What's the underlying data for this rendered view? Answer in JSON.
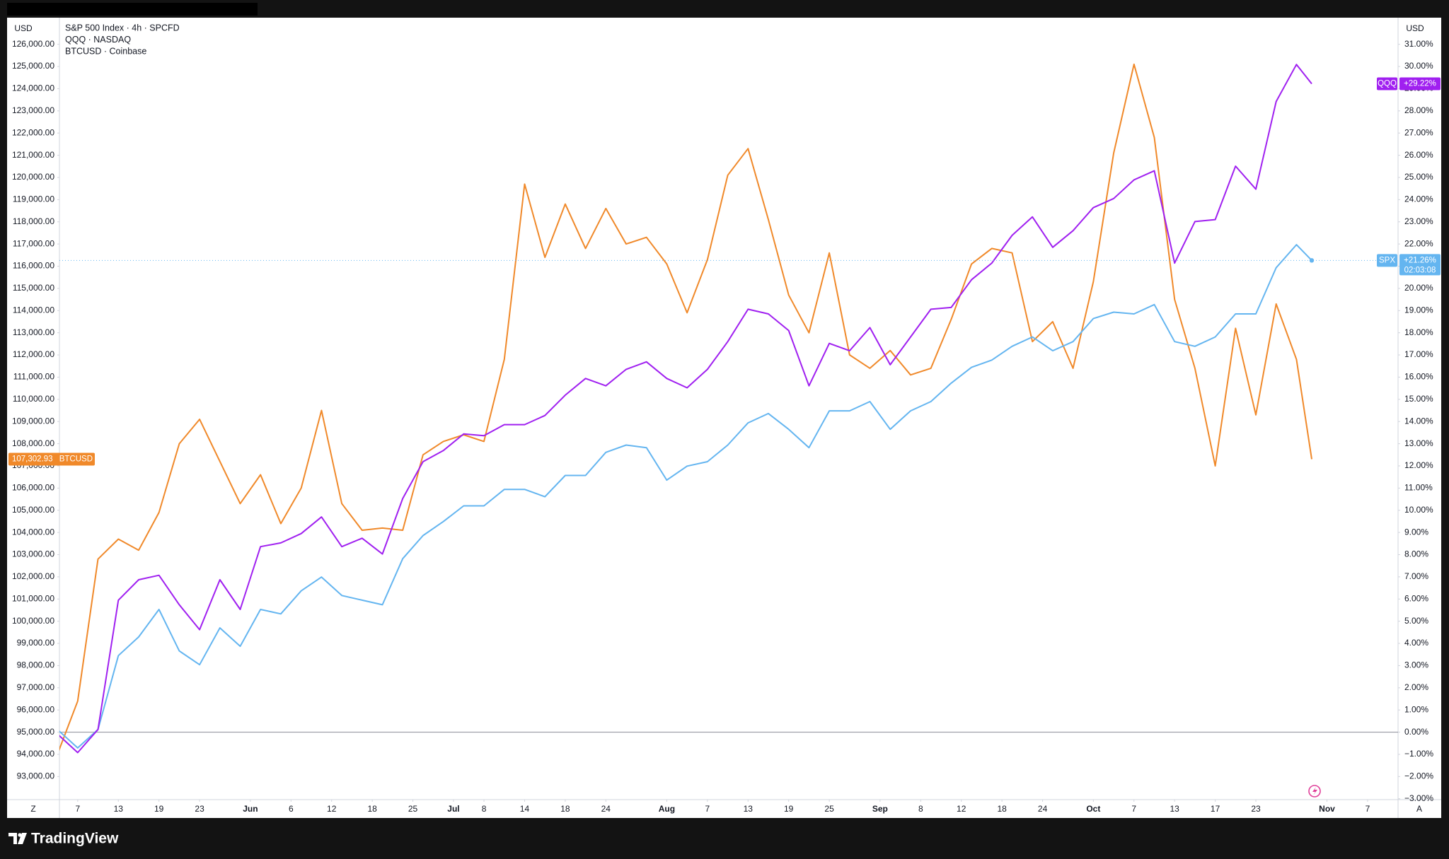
{
  "brand": "TradingView",
  "controls": {
    "left": "Z",
    "right": "A"
  },
  "chart_data": {
    "type": "line",
    "ylabel": "USD",
    "y2label": "USD",
    "ylim": [
      91960,
      127200
    ],
    "y2lim": [
      -3.04,
      32.2
    ],
    "xlim": [
      0.2,
      132
    ],
    "grid": false,
    "baseline": 0,
    "yticks": [
      {
        "value": 93000,
        "label": "93,000.00"
      },
      {
        "value": 94000,
        "label": "94,000.00"
      },
      {
        "value": 95000,
        "label": "95,000.00"
      },
      {
        "value": 96000,
        "label": "96,000.00"
      },
      {
        "value": 97000,
        "label": "97,000.00"
      },
      {
        "value": 98000,
        "label": "98,000.00"
      },
      {
        "value": 99000,
        "label": "99,000.00"
      },
      {
        "value": 100000,
        "label": "100,000.00"
      },
      {
        "value": 101000,
        "label": "101,000.00"
      },
      {
        "value": 102000,
        "label": "102,000.00"
      },
      {
        "value": 103000,
        "label": "103,000.00"
      },
      {
        "value": 104000,
        "label": "104,000.00"
      },
      {
        "value": 105000,
        "label": "105,000.00"
      },
      {
        "value": 106000,
        "label": "106,000.00"
      },
      {
        "value": 107000,
        "label": "107,000.00"
      },
      {
        "value": 108000,
        "label": "108,000.00"
      },
      {
        "value": 109000,
        "label": "109,000.00"
      },
      {
        "value": 110000,
        "label": "110,000.00"
      },
      {
        "value": 111000,
        "label": "111,000.00"
      },
      {
        "value": 112000,
        "label": "112,000.00"
      },
      {
        "value": 113000,
        "label": "113,000.00"
      },
      {
        "value": 114000,
        "label": "114,000.00"
      },
      {
        "value": 115000,
        "label": "115,000.00"
      },
      {
        "value": 116000,
        "label": "116,000.00"
      },
      {
        "value": 117000,
        "label": "117,000.00"
      },
      {
        "value": 118000,
        "label": "118,000.00"
      },
      {
        "value": 119000,
        "label": "119,000.00"
      },
      {
        "value": 120000,
        "label": "120,000.00"
      },
      {
        "value": 121000,
        "label": "121,000.00"
      },
      {
        "value": 122000,
        "label": "122,000.00"
      },
      {
        "value": 123000,
        "label": "123,000.00"
      },
      {
        "value": 124000,
        "label": "124,000.00"
      },
      {
        "value": 125000,
        "label": "125,000.00"
      },
      {
        "value": 126000,
        "label": "126,000.00"
      }
    ],
    "y2ticks": [
      {
        "value": -3,
        "label": "−3.00%"
      },
      {
        "value": -2,
        "label": "−2.00%"
      },
      {
        "value": -1,
        "label": "−1.00%"
      },
      {
        "value": 0,
        "label": "0.00%"
      },
      {
        "value": 1,
        "label": "1.00%"
      },
      {
        "value": 2,
        "label": "2.00%"
      },
      {
        "value": 3,
        "label": "3.00%"
      },
      {
        "value": 4,
        "label": "4.00%"
      },
      {
        "value": 5,
        "label": "5.00%"
      },
      {
        "value": 6,
        "label": "6.00%"
      },
      {
        "value": 7,
        "label": "7.00%"
      },
      {
        "value": 8,
        "label": "8.00%"
      },
      {
        "value": 9,
        "label": "9.00%"
      },
      {
        "value": 10,
        "label": "10.00%"
      },
      {
        "value": 11,
        "label": "11.00%"
      },
      {
        "value": 12,
        "label": "12.00%"
      },
      {
        "value": 13,
        "label": "13.00%"
      },
      {
        "value": 14,
        "label": "14.00%"
      },
      {
        "value": 15,
        "label": "15.00%"
      },
      {
        "value": 16,
        "label": "16.00%"
      },
      {
        "value": 17,
        "label": "17.00%"
      },
      {
        "value": 18,
        "label": "18.00%"
      },
      {
        "value": 19,
        "label": "19.00%"
      },
      {
        "value": 20,
        "label": "20.00%"
      },
      {
        "value": 21,
        "label": "21.00%"
      },
      {
        "value": 22,
        "label": "22.00%"
      },
      {
        "value": 23,
        "label": "23.00%"
      },
      {
        "value": 24,
        "label": "24.00%"
      },
      {
        "value": 25,
        "label": "25.00%"
      },
      {
        "value": 26,
        "label": "26.00%"
      },
      {
        "value": 27,
        "label": "27.00%"
      },
      {
        "value": 28,
        "label": "28.00%"
      },
      {
        "value": 29,
        "label": "29.00%"
      },
      {
        "value": 30,
        "label": "30.00%"
      },
      {
        "value": 31,
        "label": "31.00%"
      }
    ],
    "xticks": [
      {
        "value": 2,
        "label": "7"
      },
      {
        "value": 6,
        "label": "13"
      },
      {
        "value": 10,
        "label": "19"
      },
      {
        "value": 14,
        "label": "23"
      },
      {
        "value": 19,
        "label": "Jun"
      },
      {
        "value": 23,
        "label": "6"
      },
      {
        "value": 27,
        "label": "12"
      },
      {
        "value": 31,
        "label": "18"
      },
      {
        "value": 35,
        "label": "25"
      },
      {
        "value": 39,
        "label": "Jul"
      },
      {
        "value": 42,
        "label": "8"
      },
      {
        "value": 46,
        "label": "14"
      },
      {
        "value": 50,
        "label": "18"
      },
      {
        "value": 54,
        "label": "24"
      },
      {
        "value": 60,
        "label": "Aug"
      },
      {
        "value": 64,
        "label": "7"
      },
      {
        "value": 68,
        "label": "13"
      },
      {
        "value": 72,
        "label": "19"
      },
      {
        "value": 76,
        "label": "25"
      },
      {
        "value": 81,
        "label": "Sep"
      },
      {
        "value": 85,
        "label": "8"
      },
      {
        "value": 89,
        "label": "12"
      },
      {
        "value": 93,
        "label": "18"
      },
      {
        "value": 97,
        "label": "24"
      },
      {
        "value": 102,
        "label": "Oct"
      },
      {
        "value": 106,
        "label": "7"
      },
      {
        "value": 110,
        "label": "13"
      },
      {
        "value": 114,
        "label": "17"
      },
      {
        "value": 118,
        "label": "23"
      },
      {
        "value": 125,
        "label": "Nov"
      },
      {
        "value": 129,
        "label": "7"
      }
    ],
    "x": [
      0,
      2,
      4,
      6,
      8,
      10,
      12,
      14,
      16,
      18,
      20,
      22,
      24,
      26,
      28,
      30,
      32,
      34,
      36,
      38,
      40,
      42,
      44,
      46,
      48,
      50,
      52,
      54,
      56,
      58,
      60,
      62,
      64,
      66,
      68,
      70,
      72,
      74,
      76,
      78,
      80,
      82,
      84,
      86,
      88,
      90,
      92,
      94,
      96,
      98,
      100,
      102,
      104,
      106,
      108,
      110,
      112,
      114,
      116,
      118,
      120,
      122,
      123.5
    ],
    "series": [
      {
        "name": "S&P 500 Index · 4h · SPCFD",
        "symbol": "SPX",
        "color": "#64b5f0",
        "axis": "y2",
        "countdown": "02:03:08",
        "values": [
          0.12,
          -0.71,
          0.12,
          3.45,
          4.29,
          5.53,
          3.66,
          3.04,
          4.7,
          3.87,
          5.53,
          5.33,
          6.37,
          6.99,
          6.16,
          5.95,
          5.74,
          7.82,
          8.86,
          9.49,
          10.2,
          10.2,
          10.94,
          10.94,
          10.61,
          11.57,
          11.57,
          12.61,
          12.94,
          12.82,
          11.36,
          11.99,
          12.19,
          12.94,
          13.94,
          14.36,
          13.65,
          12.82,
          14.48,
          14.48,
          14.9,
          13.65,
          14.48,
          14.9,
          15.73,
          16.44,
          16.77,
          17.39,
          17.81,
          17.19,
          17.6,
          18.64,
          18.93,
          18.85,
          19.27,
          17.6,
          17.39,
          17.81,
          18.85,
          18.85,
          20.93,
          21.97,
          21.26
        ],
        "value_labels": [
          null,
          null,
          null,
          null,
          null,
          null,
          null,
          null,
          null,
          null,
          null,
          null,
          null,
          null,
          null,
          null,
          null,
          null,
          null,
          null,
          null,
          null,
          null,
          null,
          null,
          null,
          null,
          null,
          null,
          null,
          null,
          null,
          null,
          null,
          null,
          null,
          null,
          null,
          null,
          null,
          null,
          null,
          null,
          null,
          null,
          null,
          null,
          null,
          null,
          null,
          null,
          null,
          null,
          null,
          null,
          null,
          null,
          null,
          null,
          null,
          null,
          null,
          "+21.26%"
        ]
      },
      {
        "name": "QQQ · NASDAQ",
        "symbol": "QQQ",
        "color": "#a020f0",
        "axis": "y2",
        "values": [
          -0.08,
          -0.92,
          0.12,
          5.95,
          6.87,
          7.07,
          5.74,
          4.62,
          6.87,
          5.53,
          8.36,
          8.53,
          8.95,
          9.7,
          8.36,
          8.74,
          8.03,
          10.53,
          12.19,
          12.69,
          13.44,
          13.36,
          13.86,
          13.86,
          14.27,
          15.19,
          15.94,
          15.61,
          16.35,
          16.69,
          15.94,
          15.52,
          16.35,
          17.6,
          19.06,
          18.85,
          18.1,
          15.61,
          17.52,
          17.19,
          18.23,
          16.56,
          17.81,
          19.06,
          19.14,
          20.39,
          21.14,
          22.39,
          23.22,
          21.85,
          22.6,
          23.64,
          24.05,
          24.89,
          25.3,
          21.14,
          23.01,
          23.1,
          25.51,
          24.47,
          28.42,
          30.09,
          29.22
        ],
        "value_labels": [
          null,
          null,
          null,
          null,
          null,
          null,
          null,
          null,
          null,
          null,
          null,
          null,
          null,
          null,
          null,
          null,
          null,
          null,
          null,
          null,
          null,
          null,
          null,
          null,
          null,
          null,
          null,
          null,
          null,
          null,
          null,
          null,
          null,
          null,
          null,
          null,
          null,
          null,
          null,
          null,
          null,
          null,
          null,
          null,
          null,
          null,
          null,
          null,
          null,
          null,
          null,
          null,
          null,
          null,
          null,
          null,
          null,
          null,
          null,
          null,
          null,
          null,
          "+29.22%"
        ]
      },
      {
        "name": "BTCUSD · Coinbase",
        "symbol": "BTCUSD",
        "color": "#f0892a",
        "axis": "y",
        "values": [
          94000,
          96400,
          102800,
          103700,
          103200,
          104900,
          108000,
          109100,
          107200,
          105300,
          106600,
          104400,
          106000,
          109500,
          105300,
          104100,
          104200,
          104100,
          107500,
          108100,
          108400,
          108100,
          111800,
          119700,
          116400,
          118800,
          116800,
          118600,
          117000,
          117300,
          116100,
          113900,
          116300,
          120100,
          121300,
          118100,
          114700,
          113000,
          116600,
          112000,
          111400,
          112200,
          111100,
          111400,
          113600,
          116100,
          116800,
          116600,
          112600,
          113500,
          111400,
          115300,
          121100,
          125100,
          121800,
          114500,
          111400,
          107000,
          113200,
          109300,
          114300,
          111800,
          107302.93
        ],
        "value_labels": [
          null,
          null,
          null,
          null,
          null,
          null,
          null,
          null,
          null,
          null,
          null,
          null,
          null,
          null,
          null,
          null,
          null,
          null,
          null,
          null,
          null,
          null,
          null,
          null,
          null,
          null,
          null,
          null,
          null,
          null,
          null,
          null,
          null,
          null,
          null,
          null,
          null,
          null,
          null,
          null,
          null,
          null,
          null,
          null,
          null,
          null,
          null,
          null,
          null,
          null,
          null,
          null,
          null,
          null,
          null,
          null,
          null,
          null,
          null,
          null,
          null,
          null,
          "107,302.93"
        ]
      }
    ]
  }
}
